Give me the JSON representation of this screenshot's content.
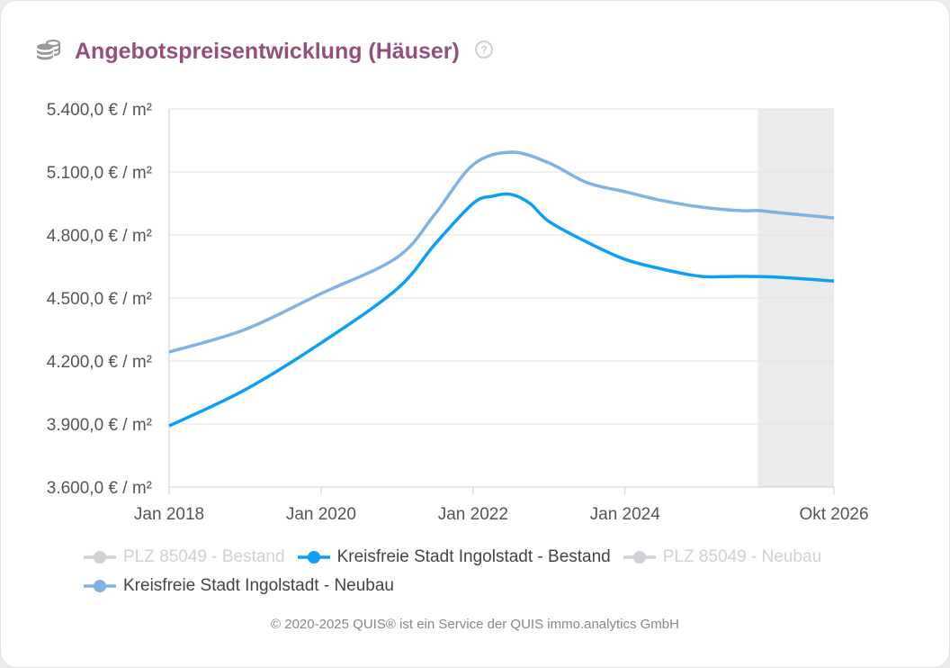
{
  "header": {
    "title": "Angebotspreisentwicklung (Häuser)",
    "icon": "coins-icon",
    "help_icon": "question-circle-icon"
  },
  "chart_data": {
    "type": "line",
    "title": "Angebotspreisentwicklung (Häuser)",
    "ylim": [
      3600,
      5400
    ],
    "xlim": [
      2018.0,
      2026.75
    ],
    "yticks": [
      3600,
      3900,
      4200,
      4500,
      4800,
      5100,
      5400
    ],
    "ytick_labels": [
      "3.600,0 € / m²",
      "3.900,0 € / m²",
      "4.200,0 € / m²",
      "4.500,0 € / m²",
      "4.800,0 € / m²",
      "5.100,0 € / m²",
      "5.400,0 € / m²"
    ],
    "xticks": [
      2018.0,
      2020.0,
      2022.0,
      2024.0,
      2026.75
    ],
    "xtick_labels": [
      "Jan 2018",
      "Jan 2020",
      "Jan 2022",
      "Jan 2024",
      "Okt 2026"
    ],
    "grid": true,
    "forecast_band": [
      2025.75,
      2026.75
    ],
    "forecast_color": "#ebebeb",
    "legend_position": "bottom",
    "series": [
      {
        "name": "PLZ 85049 - Bestand",
        "visible": false,
        "color": "#cfd1d6",
        "x": [],
        "y": []
      },
      {
        "name": "Kreisfreie Stadt Ingolstadt - Bestand",
        "visible": true,
        "color": "#0ba0f5",
        "x": [
          2018,
          2019,
          2020,
          2021,
          2021.5,
          2022,
          2022.25,
          2022.5,
          2022.75,
          2023,
          2023.5,
          2024,
          2024.5,
          2025,
          2025.5,
          2026,
          2026.75
        ],
        "y": [
          3891,
          4063,
          4286,
          4543,
          4757,
          4950,
          4984,
          4993,
          4950,
          4864,
          4766,
          4684,
          4637,
          4603,
          4603,
          4599,
          4581
        ]
      },
      {
        "name": "PLZ 85049 - Neubau",
        "visible": false,
        "color": "#cfd1d6",
        "x": [],
        "y": []
      },
      {
        "name": "Kreisfreie Stadt Ingolstadt - Neubau",
        "visible": true,
        "color": "#7fb2e5",
        "x": [
          2018,
          2019,
          2020,
          2021,
          2021.5,
          2022,
          2022.5,
          2023,
          2023.5,
          2024,
          2024.5,
          2025,
          2025.5,
          2025.75,
          2026,
          2026.75
        ],
        "y": [
          4243,
          4350,
          4521,
          4693,
          4900,
          5134,
          5194,
          5143,
          5049,
          5006,
          4963,
          4933,
          4916,
          4916,
          4907,
          4881
        ]
      }
    ]
  },
  "footer": {
    "text": "© 2020-2025 QUIS® ist ein Service der QUIS immo.analytics GmbH"
  }
}
